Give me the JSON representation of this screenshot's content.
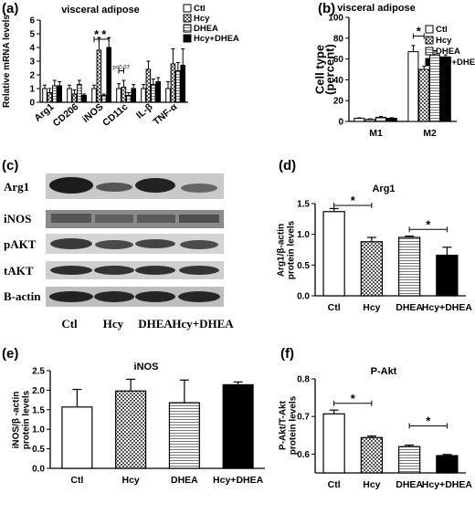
{
  "groups": [
    "Ctl",
    "Hcy",
    "DHEA",
    "Hcy+DHEA"
  ],
  "colors": {
    "Ctl": "#ffffff",
    "Hcy": "checker",
    "DHEA": "hlines",
    "Hcy+DHEA": "#000000"
  },
  "panels": [
    {
      "label": "(a)",
      "title": "visceral adipose"
    },
    {
      "label": "(b)",
      "title": "visceral adipose"
    },
    {
      "label": "(c)",
      "title": ""
    },
    {
      "label": "(d)",
      "title": "Arg1"
    },
    {
      "label": "(e)",
      "title": "iNOS"
    },
    {
      "label": "(f)",
      "title": "P-Akt"
    }
  ],
  "blot": {
    "rows": [
      "Arg1",
      "iNOS",
      "pAKT",
      "tAKT",
      "B-actin"
    ],
    "lanes": [
      "Ctl",
      "Hcy",
      "DHEA",
      "Hcy+DHEA"
    ]
  },
  "chart_data": [
    {
      "panel": "(a)",
      "type": "bar",
      "title": "visceral adipose",
      "ylabel": "Relative mRNA levels",
      "ylim": [
        0,
        6
      ],
      "yticks": [
        "0",
        "1",
        "2",
        "3",
        "4",
        "5",
        "6"
      ],
      "categories": [
        "Arg1",
        "CD206",
        "iNOS",
        "CD11c",
        "IL-β",
        "TNF-α"
      ],
      "series": [
        {
          "name": "Ctl",
          "values": [
            1.0,
            1.0,
            1.0,
            1.0,
            1.0,
            1.0
          ],
          "errors": [
            0.25,
            0.25,
            0.25,
            0.35,
            0.3,
            0.5
          ]
        },
        {
          "name": "Hcy",
          "values": [
            0.7,
            0.6,
            3.8,
            1.1,
            2.4,
            2.8
          ],
          "errors": [
            0.3,
            0.3,
            0.9,
            0.5,
            0.6,
            1.1
          ]
        },
        {
          "name": "DHEA",
          "values": [
            1.2,
            1.3,
            0.5,
            0.5,
            1.3,
            2.3
          ],
          "errors": [
            0.4,
            0.3,
            0.1,
            0.2,
            0.4,
            0.6
          ]
        },
        {
          "name": "Hcy+DHEA",
          "values": [
            1.2,
            0.5,
            4.0,
            1.0,
            1.5,
            2.7
          ],
          "errors": [
            0.3,
            0.1,
            0.7,
            0.3,
            0.3,
            1.2
          ]
        }
      ],
      "annotations": [
        "*",
        "*",
        "p=0.07"
      ],
      "legend": "top-right"
    },
    {
      "panel": "(b)",
      "type": "bar",
      "title": "visceral adipose",
      "ylabel": "Cell type\n(percent)",
      "ylim": [
        0,
        100
      ],
      "yticks": [
        "0",
        "20",
        "40",
        "60",
        "80",
        "100"
      ],
      "categories": [
        "M1",
        "M2"
      ],
      "series": [
        {
          "name": "Ctl",
          "values": [
            3,
            67
          ],
          "errors": [
            0.5,
            6
          ]
        },
        {
          "name": "Hcy",
          "values": [
            2,
            50
          ],
          "errors": [
            0.5,
            3
          ]
        },
        {
          "name": "DHEA",
          "values": [
            4,
            64
          ],
          "errors": [
            0.8,
            4
          ]
        },
        {
          "name": "Hcy+DHEA",
          "values": [
            3,
            62
          ],
          "errors": [
            0.6,
            2
          ]
        }
      ],
      "annotations": [
        "*"
      ],
      "legend": "top-right"
    },
    {
      "panel": "(d)",
      "type": "bar",
      "title": "Arg1",
      "ylabel": "Arg1/β-actin\nprotein levels",
      "ylim": [
        0,
        1.5
      ],
      "yticks": [
        "0.0",
        "0.5",
        "1.0",
        "1.5"
      ],
      "categories": [
        "Ctl",
        "Hcy",
        "DHEA",
        "Hcy+DHEA"
      ],
      "values": [
        1.37,
        0.88,
        0.95,
        0.66
      ],
      "errors": [
        0.05,
        0.07,
        0.02,
        0.13
      ],
      "annotations": [
        "*",
        "*"
      ]
    },
    {
      "panel": "(e)",
      "type": "bar",
      "title": "iNOS",
      "ylabel": "iNOS/β -actin\nprotein levels",
      "ylim": [
        0,
        2.5
      ],
      "yticks": [
        "0.0",
        "0.5",
        "1.0",
        "1.5",
        "2.0",
        "2.5"
      ],
      "categories": [
        "Ctl",
        "Hcy",
        "DHEA",
        "Hcy+DHEA"
      ],
      "values": [
        1.57,
        1.98,
        1.68,
        2.14
      ],
      "errors": [
        0.45,
        0.3,
        0.58,
        0.07
      ]
    },
    {
      "panel": "(f)",
      "type": "bar",
      "title": "P-Akt",
      "ylabel": "P-Akt/T-Akt\nprotein levels",
      "ylim": [
        0.55,
        0.8
      ],
      "yticks": [
        "0.6",
        "0.7",
        "0.8"
      ],
      "categories": [
        "Ctl",
        "Hcy",
        "DHEA",
        "Hcy+DHEA"
      ],
      "values": [
        0.707,
        0.644,
        0.62,
        0.596
      ],
      "errors": [
        0.01,
        0.004,
        0.004,
        0.003
      ],
      "annotations": [
        "*",
        "*"
      ]
    }
  ]
}
